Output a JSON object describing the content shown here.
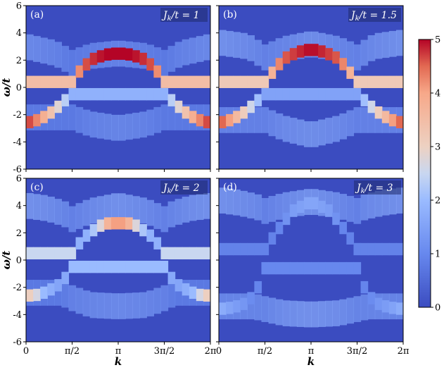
{
  "chart_data": [
    {
      "type": "heatmap",
      "panel_label": "(a)",
      "param_label": "J",
      "param_sub": "k",
      "param_rest": "/t = 1",
      "bands": [
        {
          "name": "lower band",
          "k": [
            0,
            0.25,
            0.5,
            0.75,
            1.0,
            1.25,
            1.5,
            1.57
          ],
          "omega": [
            -2.6,
            -2.5,
            -2.3,
            -2.0,
            -1.6,
            -1.1,
            -0.6,
            -0.5
          ],
          "weight": [
            4.8,
            4.5,
            4.0,
            3.6,
            3.0,
            2.5,
            2.0,
            1.8
          ]
        },
        {
          "name": "upper band",
          "k": [
            1.57,
            1.7,
            2.0,
            2.3,
            2.7,
            3.14
          ],
          "omega": [
            0.4,
            0.9,
            1.6,
            2.1,
            2.4,
            2.5
          ],
          "weight": [
            3.5,
            4.0,
            4.6,
            4.8,
            5.0,
            5.0
          ]
        },
        {
          "name": "high-energy shadow",
          "k": [
            0,
            1.0,
            1.57,
            2.2,
            3.14
          ],
          "omega": [
            3.0,
            2.5,
            1.8,
            2.3,
            2.5
          ],
          "weight": [
            1.4,
            1.2,
            1.0,
            1.1,
            1.2
          ]
        },
        {
          "name": "low-energy shadow",
          "k": [
            1.57,
            2.2,
            3.14
          ],
          "omega": [
            -2.2,
            -2.7,
            -3.0
          ],
          "weight": [
            1.0,
            1.2,
            1.3
          ]
        }
      ],
      "xlim": [
        0,
        6.2832
      ],
      "ylim": [
        -6,
        6
      ],
      "color_range": [
        0,
        5
      ]
    },
    {
      "type": "heatmap",
      "panel_label": "(b)",
      "param_label": "J",
      "param_sub": "k",
      "param_rest": "/t = 1.5",
      "bands": [
        {
          "name": "lower band",
          "k": [
            0,
            0.25,
            0.5,
            0.75,
            1.0,
            1.25,
            1.5,
            1.57
          ],
          "omega": [
            -2.6,
            -2.5,
            -2.3,
            -2.0,
            -1.6,
            -1.1,
            -0.6,
            -0.5
          ],
          "weight": [
            4.7,
            4.3,
            3.8,
            3.3,
            2.8,
            2.2,
            1.8,
            1.5
          ]
        },
        {
          "name": "upper band",
          "k": [
            1.57,
            1.75,
            2.0,
            2.3,
            2.7,
            3.14
          ],
          "omega": [
            0.4,
            0.9,
            1.6,
            2.2,
            2.6,
            2.8
          ],
          "weight": [
            3.2,
            3.6,
            4.2,
            4.6,
            4.8,
            5.0
          ]
        },
        {
          "name": "high-energy shadow",
          "k": [
            0,
            1.0,
            1.57,
            2.2,
            3.14
          ],
          "omega": [
            3.3,
            3.0,
            2.2,
            2.8,
            3.2
          ],
          "weight": [
            1.6,
            1.4,
            1.2,
            1.3,
            1.5
          ]
        },
        {
          "name": "low-energy shadow",
          "k": [
            1.57,
            2.2,
            3.14
          ],
          "omega": [
            -2.4,
            -3.0,
            -3.5
          ],
          "weight": [
            1.2,
            1.4,
            1.5
          ]
        }
      ],
      "xlim": [
        0,
        6.2832
      ],
      "ylim": [
        -6,
        6
      ],
      "color_range": [
        0,
        5
      ]
    },
    {
      "type": "heatmap",
      "panel_label": "(c)",
      "param_label": "J",
      "param_sub": "k",
      "param_rest": "/t = 2",
      "bands": [
        {
          "name": "lower band",
          "k": [
            0,
            0.3,
            0.6,
            0.9,
            1.2,
            1.5,
            1.57
          ],
          "omega": [
            -2.6,
            -2.6,
            -2.4,
            -2.1,
            -1.7,
            -0.8,
            -0.5
          ],
          "weight": [
            3.2,
            2.8,
            2.0,
            1.7,
            1.5,
            1.8,
            2.0
          ]
        },
        {
          "name": "upper band",
          "k": [
            1.57,
            1.8,
            2.1,
            2.5,
            2.8,
            3.14
          ],
          "omega": [
            0.5,
            1.2,
            1.9,
            2.5,
            2.7,
            2.7
          ],
          "weight": [
            2.5,
            1.8,
            1.8,
            2.6,
            3.8,
            4.2
          ]
        },
        {
          "name": "high-energy shadow",
          "k": [
            0,
            0.7,
            1.3,
            1.57,
            2.2,
            3.14
          ],
          "omega": [
            4.0,
            3.8,
            3.4,
            3.0,
            3.6,
            4.0
          ],
          "weight": [
            1.6,
            1.5,
            1.3,
            1.2,
            1.4,
            1.6
          ]
        },
        {
          "name": "low-energy shadow",
          "k": [
            1.2,
            1.57,
            2.2,
            3.14
          ],
          "omega": [
            -2.4,
            -2.8,
            -3.3,
            -3.4
          ],
          "weight": [
            1.0,
            1.2,
            1.3,
            1.4
          ]
        }
      ],
      "xlim": [
        0,
        6.2832
      ],
      "ylim": [
        -6,
        6
      ],
      "color_range": [
        0,
        5
      ]
    },
    {
      "type": "heatmap",
      "panel_label": "(d)",
      "param_label": "J",
      "param_sub": "k",
      "param_rest": "/t = 3",
      "bands": [
        {
          "name": "lower band",
          "k": [
            0,
            0.4,
            0.8,
            1.2,
            1.5,
            1.57
          ],
          "omega": [
            -3.6,
            -3.5,
            -3.3,
            -2.6,
            -1.2,
            -0.6
          ],
          "weight": [
            1.8,
            1.5,
            1.3,
            1.0,
            0.9,
            1.0
          ]
        },
        {
          "name": "upper band",
          "k": [
            1.57,
            2.0,
            2.5,
            3.14
          ],
          "omega": [
            0.8,
            2.2,
            3.6,
            4.3
          ],
          "weight": [
            0.9,
            0.9,
            1.4,
            1.6
          ]
        },
        {
          "name": "high-energy shadow",
          "k": [
            0,
            0.7,
            1.3,
            1.57,
            2.2,
            3.14
          ],
          "omega": [
            4.4,
            4.2,
            3.9,
            3.6,
            4.0,
            4.3
          ],
          "weight": [
            1.6,
            1.5,
            1.4,
            1.2,
            1.4,
            1.6
          ]
        },
        {
          "name": "low-energy shadow",
          "k": [
            1.2,
            1.57,
            2.2,
            3.14
          ],
          "omega": [
            -3.4,
            -3.6,
            -3.9,
            -4.0
          ],
          "weight": [
            1.3,
            1.3,
            1.5,
            1.6
          ]
        }
      ],
      "xlim": [
        0,
        6.2832
      ],
      "ylim": [
        -6,
        6
      ],
      "color_range": [
        0,
        5
      ]
    }
  ],
  "axes": {
    "ylabel": "ω/t",
    "xlabel": "k",
    "yticks": [
      {
        "value": 6,
        "label": "6"
      },
      {
        "value": 4,
        "label": "4"
      },
      {
        "value": 2,
        "label": "2"
      },
      {
        "value": 0,
        "label": "0"
      },
      {
        "value": -2,
        "label": "-2"
      },
      {
        "value": -4,
        "label": "-4"
      },
      {
        "value": -6,
        "label": "-6"
      }
    ],
    "xticks": [
      {
        "value": 0,
        "label": "0"
      },
      {
        "value": 1.5708,
        "label": "π/2"
      },
      {
        "value": 3.1416,
        "label": "π"
      },
      {
        "value": 4.7124,
        "label": "3π/2"
      },
      {
        "value": 6.2832,
        "label": "2π"
      }
    ]
  },
  "colorbar": {
    "ticks": [
      {
        "value": 5,
        "label": "5"
      },
      {
        "value": 4,
        "label": "4"
      },
      {
        "value": 3,
        "label": "3"
      },
      {
        "value": 2,
        "label": "2"
      },
      {
        "value": 1,
        "label": "1"
      },
      {
        "value": 0,
        "label": "0"
      }
    ],
    "colors": {
      "low": "#3b4cc0",
      "mid": "#dddddd",
      "high": "#b40426"
    }
  },
  "colors": {
    "background_low": "#3b4cc0",
    "label_box": "#1f2a6b"
  }
}
